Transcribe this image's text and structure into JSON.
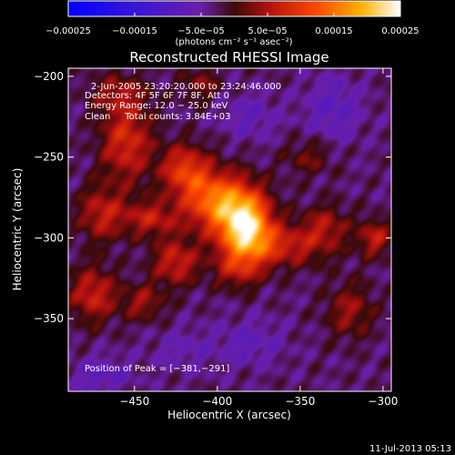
{
  "chart_data": {
    "type": "heatmap",
    "title": "Reconstructed RHESSI Image",
    "xlabel": "Heliocentric X (arcsec)",
    "ylabel": "Heliocentric Y (arcsec)",
    "xlim": [
      -490,
      -295
    ],
    "ylim": [
      -395,
      -195
    ],
    "x_ticks": [
      -450,
      -400,
      -350,
      -300
    ],
    "x_tick_labels": [
      "−450",
      "−400",
      "−350",
      "−300"
    ],
    "y_ticks": [
      -200,
      -250,
      -300,
      -350
    ],
    "y_tick_labels": [
      "−200",
      "−250",
      "−300",
      "−350"
    ],
    "colorbar": {
      "min": -0.00025,
      "max": 0.00025,
      "ticks": [
        -0.00025,
        -0.00015,
        -5e-05,
        5e-05,
        0.00015,
        0.00025
      ],
      "tick_labels": [
        "−0.00025",
        "−0.00015",
        "−5.0e−05",
        "5.0e−05",
        "0.00015",
        "0.00025"
      ],
      "unit_label": "(photons cm⁻² s⁻¹ asec⁻²)",
      "colors": [
        "#0000ff",
        "#6a1fa8",
        "#8b1a1a",
        "#ff3300",
        "#ffaa00",
        "#ffffff"
      ]
    },
    "annotations": {
      "time_range": "2-Jun-2005 23:20:20.000 to 23:24:46.000",
      "detectors": "Detectors: 4F 5F 6F 7F 8F, Att 0",
      "energy_range": "Energy Range: 12.0 − 25.0 keV",
      "clean_counts": "Clean     Total counts: 3.84E+03",
      "peak_position": "Position of Peak = [−381,−291]"
    },
    "sources": [
      {
        "x": -383,
        "y": -292,
        "value": 0.00025,
        "sx": 11,
        "sy": 15
      },
      {
        "x": -402,
        "y": -277,
        "value": 0.00016,
        "sx": 13,
        "sy": 13
      },
      {
        "x": -420,
        "y": -258,
        "value": 0.00012,
        "sx": 10,
        "sy": 11
      },
      {
        "x": -455,
        "y": -240,
        "value": 0.00011,
        "sx": 11,
        "sy": 18
      },
      {
        "x": -470,
        "y": -285,
        "value": 9e-05,
        "sx": 10,
        "sy": 12
      },
      {
        "x": -440,
        "y": -288,
        "value": 9e-05,
        "sx": 12,
        "sy": 8
      },
      {
        "x": -425,
        "y": -315,
        "value": 0.0001,
        "sx": 10,
        "sy": 10
      },
      {
        "x": -360,
        "y": -305,
        "value": 9e-05,
        "sx": 20,
        "sy": 9
      },
      {
        "x": -335,
        "y": -292,
        "value": 7e-05,
        "sx": 10,
        "sy": 9
      },
      {
        "x": -305,
        "y": -300,
        "value": 9e-05,
        "sx": 7,
        "sy": 8
      },
      {
        "x": -345,
        "y": -250,
        "value": 5e-05,
        "sx": 10,
        "sy": 8
      },
      {
        "x": -475,
        "y": -335,
        "value": 0.0001,
        "sx": 10,
        "sy": 12
      },
      {
        "x": -445,
        "y": -340,
        "value": 7e-05,
        "sx": 9,
        "sy": 8
      },
      {
        "x": -388,
        "y": -320,
        "value": 7e-05,
        "sx": 10,
        "sy": 8
      },
      {
        "x": -320,
        "y": -345,
        "value": 7e-05,
        "sx": 10,
        "sy": 12
      },
      {
        "x": -410,
        "y": -205,
        "value": 6e-05,
        "sx": 8,
        "sy": 7
      },
      {
        "x": -460,
        "y": -210,
        "value": 6e-05,
        "sx": 12,
        "sy": 8
      },
      {
        "x": -380,
        "y": -365,
        "value": -4e-05,
        "sx": 14,
        "sy": 10
      },
      {
        "x": -470,
        "y": -385,
        "value": -5e-05,
        "sx": 12,
        "sy": 8
      },
      {
        "x": -330,
        "y": -220,
        "value": -5e-05,
        "sx": 12,
        "sy": 14
      },
      {
        "x": -380,
        "y": -225,
        "value": -4e-05,
        "sx": 12,
        "sy": 10
      },
      {
        "x": -420,
        "y": -370,
        "value": -3e-05,
        "sx": 14,
        "sy": 10
      }
    ],
    "background_value": -3e-05
  },
  "footer": {
    "timestamp": "11-Jul-2013 05:13"
  }
}
